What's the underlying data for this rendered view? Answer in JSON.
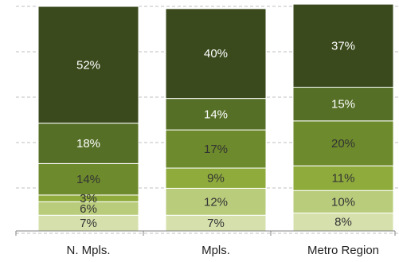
{
  "chart_data": {
    "type": "bar",
    "stacked": true,
    "orientation": "vertical",
    "categories": [
      "N. Mpls.",
      "Mpls.",
      "Metro Region"
    ],
    "ylim": [
      0,
      100
    ],
    "grid": true,
    "legend": "none",
    "series": [
      {
        "values": [
          7,
          7,
          8
        ],
        "labels": [
          "7%",
          "7%",
          "8%"
        ],
        "color": "#d6e0ad",
        "label_color": "dark"
      },
      {
        "values": [
          6,
          12,
          10
        ],
        "labels": [
          "6%",
          "12%",
          "10%"
        ],
        "color": "#b9cc7c",
        "label_color": "dark"
      },
      {
        "values": [
          3,
          9,
          11
        ],
        "labels": [
          "3%",
          "9%",
          "11%"
        ],
        "color": "#8fab3c",
        "label_color": "dark"
      },
      {
        "values": [
          14,
          17,
          20
        ],
        "labels": [
          "14%",
          "17%",
          "20%"
        ],
        "color": "#6d8a2c",
        "label_color": "dark"
      },
      {
        "values": [
          18,
          14,
          15
        ],
        "labels": [
          "18%",
          "14%",
          "15%"
        ],
        "color": "#556f26",
        "label_color": "light"
      },
      {
        "values": [
          52,
          40,
          37
        ],
        "labels": [
          "52%",
          "40%",
          "37%"
        ],
        "color": "#3a4a1c",
        "label_color": "light"
      }
    ]
  }
}
